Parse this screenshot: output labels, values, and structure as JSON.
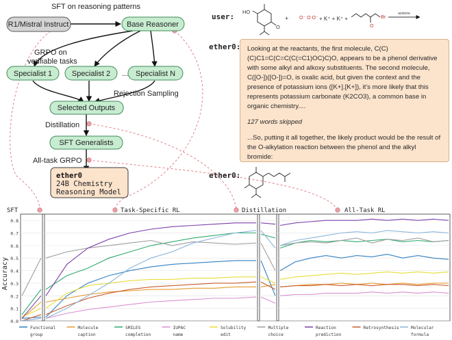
{
  "flow": {
    "start": "R1/Mistral Instruct",
    "sft_label": "SFT on reasoning patterns",
    "base": "Base Reasoner",
    "grpo_label_1": "GRPO on",
    "grpo_label_2": "verifiable tasks",
    "specialists": [
      "Specialist 1",
      "Specialist 2",
      "...",
      "Specialist N"
    ],
    "rejection": "Rejection Sampling",
    "selected": "Selected Outputs",
    "distillation": "Distillation",
    "generalists": "SFT Generalists",
    "alltask": "All-task GRPO",
    "final_title": "ether0",
    "final_sub1": "24B Chemistry",
    "final_sub2": "Reasoning Model"
  },
  "chat": {
    "user_label": "user:",
    "arrow_label": "acetone",
    "ether_label_1": "ether0:",
    "ether_label_2": "ether0:",
    "para1": "Looking at the reactants, the first molecule, C(C)(C)C1=C(C=C(C(=C1)OC)C)O, appears to be a phenol derivative with some alkyl and alkoxy substituents. The second molecule, C([O-])([O-])=O, is oxalic acid, but given the context and the presence of potassium ions ([K+].[K+]), it's more likely that this represents potassium carbonate (K2CO3), a common base in organic chemistry....",
    "skipped": "127 words skipped",
    "para2": "...So, putting it all together, the likely product would be the result of the O-alkylation reaction between the phenol and the alkyl bromide:"
  },
  "colors": {
    "node_green": "#c7ecd0",
    "node_green_border": "#3f8a57",
    "node_gray": "#d4d4d4",
    "node_orange": "#fbe3cc",
    "guide_pink": "#e07f87"
  },
  "chart_data": {
    "type": "line",
    "ylabel": "Accuracy",
    "ylim": [
      0,
      0.85
    ],
    "yticks": [
      "0.0",
      "0.1",
      "0.2",
      "0.3",
      "0.4",
      "0.5",
      "0.6",
      "0.7",
      "0.8"
    ],
    "phases": [
      "SFT",
      "Task-Specific RL",
      "Distillation",
      "All-Task RL"
    ],
    "series": [
      {
        "name": "Functional group",
        "color": "#2f7fc2",
        "segments": [
          [
            0.02,
            0.03
          ],
          [
            0.03,
            0.2,
            0.3,
            0.36,
            0.4,
            0.43,
            0.45,
            0.46,
            0.47,
            0.48,
            0.48
          ],
          [
            0.48,
            0.2
          ],
          [
            0.4,
            0.47,
            0.5,
            0.52,
            0.5,
            0.52,
            0.51,
            0.53,
            0.5,
            0.52,
            0.5,
            0.49
          ]
        ]
      },
      {
        "name": "Molecule caption",
        "color": "#e59a2f",
        "segments": [
          [
            0.02,
            0.15
          ],
          [
            0.15,
            0.18,
            0.21,
            0.23,
            0.24,
            0.25,
            0.25,
            0.26,
            0.26,
            0.27,
            0.27
          ],
          [
            0.27,
            0.29
          ],
          [
            0.27,
            0.28,
            0.29,
            0.29,
            0.3,
            0.29,
            0.3,
            0.29,
            0.3,
            0.29,
            0.3,
            0.3
          ]
        ]
      },
      {
        "name": "SMILES completion",
        "color": "#2eaa6e",
        "segments": [
          [
            0.05,
            0.25
          ],
          [
            0.25,
            0.36,
            0.42,
            0.5,
            0.55,
            0.6,
            0.63,
            0.66,
            0.68,
            0.7,
            0.7
          ],
          [
            0.69,
            0.66
          ],
          [
            0.58,
            0.62,
            0.64,
            0.63,
            0.64,
            0.63,
            0.64,
            0.65,
            0.63,
            0.64,
            0.63,
            0.64
          ]
        ]
      },
      {
        "name": "IUPAC name",
        "color": "#d98fcf",
        "segments": [
          [
            0.0,
            0.02
          ],
          [
            0.02,
            0.06,
            0.09,
            0.11,
            0.13,
            0.15,
            0.16,
            0.17,
            0.18,
            0.18,
            0.19
          ],
          [
            0.19,
            0.14
          ],
          [
            0.2,
            0.21,
            0.21,
            0.22,
            0.22,
            0.22,
            0.23,
            0.22,
            0.23,
            0.22,
            0.23,
            0.22
          ]
        ]
      },
      {
        "name": "Solubility edit",
        "color": "#e8dd3a",
        "segments": [
          [
            0.03,
            0.1
          ],
          [
            0.1,
            0.22,
            0.28,
            0.3,
            0.32,
            0.33,
            0.33,
            0.34,
            0.34,
            0.35,
            0.35
          ],
          [
            0.35,
            0.3
          ],
          [
            0.33,
            0.35,
            0.36,
            0.37,
            0.38,
            0.37,
            0.38,
            0.39,
            0.38,
            0.39,
            0.38,
            0.39
          ]
        ]
      },
      {
        "name": "Multiple choice",
        "color": "#9d9d9d",
        "segments": [
          [
            0.2,
            0.5
          ],
          [
            0.5,
            0.55,
            0.58,
            0.6,
            0.62,
            0.64,
            0.6,
            0.63,
            0.62,
            0.61,
            0.62
          ],
          [
            0.62,
            0.4
          ],
          [
            0.6,
            0.62,
            0.63,
            0.62,
            0.64,
            0.66,
            0.62,
            0.65,
            0.64,
            0.66,
            0.63,
            0.64
          ]
        ]
      },
      {
        "name": "Reaction prediction",
        "color": "#7b3fa8",
        "segments": [
          [
            0.02,
            0.2
          ],
          [
            0.2,
            0.45,
            0.58,
            0.65,
            0.7,
            0.73,
            0.75,
            0.76,
            0.77,
            0.78,
            0.78
          ],
          [
            0.78,
            0.77
          ],
          [
            0.76,
            0.78,
            0.79,
            0.8,
            0.8,
            0.8,
            0.81,
            0.8,
            0.81,
            0.8,
            0.81,
            0.8
          ]
        ]
      },
      {
        "name": "Retrosynthesis",
        "color": "#c95b2a",
        "segments": [
          [
            0.0,
            0.05
          ],
          [
            0.05,
            0.12,
            0.18,
            0.22,
            0.25,
            0.27,
            0.28,
            0.29,
            0.3,
            0.3,
            0.31
          ],
          [
            0.31,
            0.25
          ],
          [
            0.27,
            0.28,
            0.28,
            0.29,
            0.28,
            0.29,
            0.28,
            0.29,
            0.29,
            0.28,
            0.29,
            0.28
          ]
        ]
      },
      {
        "name": "Molecular formula",
        "color": "#8ab5db",
        "segments": [
          [
            0.0,
            0.02
          ],
          [
            0.02,
            0.1,
            0.2,
            0.3,
            0.42,
            0.5,
            0.55,
            0.62,
            0.66,
            0.7,
            0.72
          ],
          [
            0.72,
            0.58
          ],
          [
            0.6,
            0.64,
            0.66,
            0.68,
            0.7,
            0.71,
            0.7,
            0.72,
            0.71,
            0.7,
            0.71,
            0.7
          ]
        ]
      }
    ]
  }
}
